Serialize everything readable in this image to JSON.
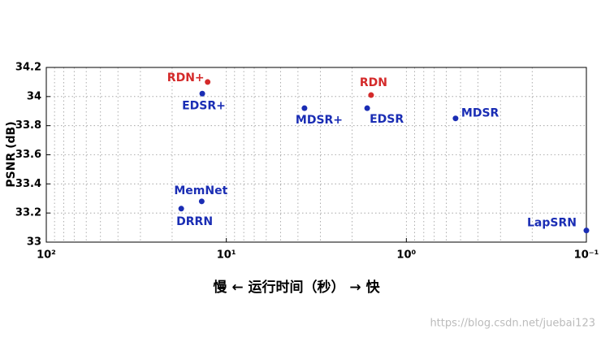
{
  "chart_data": {
    "type": "scatter",
    "ylabel": "PSNR (dB)",
    "xlabel": "慢 ← 运行时间（秒） → 快",
    "watermark": "https://blog.csdn.net/juebai123",
    "labels": [
      "RDN+",
      "EDSR+",
      "MDSR+",
      "RDN",
      "EDSR",
      "MDSR",
      "MemNet",
      "DRRN",
      "LapSRN"
    ],
    "x": [
      12.7,
      13.6,
      3.68,
      1.57,
      1.65,
      0.533,
      13.7,
      17.8,
      0.1
    ],
    "y": [
      34.1,
      34.02,
      33.92,
      34.01,
      33.92,
      33.85,
      33.28,
      33.23,
      33.08
    ],
    "colors": [
      "#d42a2a",
      "#1a2db4",
      "#1a2db4",
      "#d42a2a",
      "#1a2db4",
      "#1a2db4",
      "#1a2db4",
      "#1a2db4",
      "#1a2db4"
    ],
    "xscale": "log",
    "xlim": [
      100,
      0.1
    ],
    "xticks": [
      {
        "value": 100,
        "label": "10²"
      },
      {
        "value": 10,
        "label": "10¹"
      },
      {
        "value": 1,
        "label": "10⁰"
      },
      {
        "value": 0.1,
        "label": "10⁻¹"
      }
    ],
    "ylim": [
      33,
      34.2
    ],
    "yticks": [
      33,
      33.2,
      33.4,
      33.6,
      33.8,
      34,
      34.2
    ],
    "grid": true
  }
}
